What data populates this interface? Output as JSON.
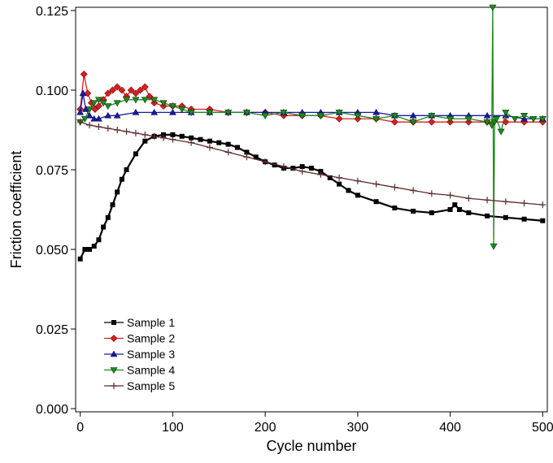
{
  "chart_data": {
    "type": "line",
    "title": "",
    "xlabel": "Cycle number",
    "ylabel": "Friction coefficient",
    "xlim": [
      -5,
      505
    ],
    "ylim": [
      -0.001,
      0.126
    ],
    "x_ticks": [
      0,
      100,
      200,
      300,
      400,
      500
    ],
    "x_tick_labels": [
      "0",
      "100",
      "200",
      "300",
      "400",
      "500"
    ],
    "y_ticks": [
      0.0,
      0.025,
      0.05,
      0.075,
      0.1,
      0.125
    ],
    "y_tick_labels": [
      "0.000",
      "0.025",
      "0.050",
      "0.075",
      "0.100",
      "0.125"
    ],
    "grid": false,
    "legend_position": "bottom-left",
    "series": [
      {
        "name": "Sample 1",
        "color": "#000000",
        "marker": "square",
        "x": [
          0,
          5,
          10,
          15,
          20,
          25,
          30,
          35,
          40,
          45,
          50,
          60,
          70,
          80,
          90,
          100,
          110,
          120,
          130,
          140,
          150,
          160,
          170,
          180,
          190,
          200,
          210,
          220,
          230,
          240,
          250,
          260,
          270,
          280,
          290,
          300,
          320,
          340,
          360,
          380,
          400,
          405,
          410,
          420,
          440,
          460,
          480,
          500
        ],
        "y": [
          0.047,
          0.05,
          0.05,
          0.051,
          0.053,
          0.057,
          0.06,
          0.064,
          0.068,
          0.072,
          0.075,
          0.08,
          0.084,
          0.0855,
          0.086,
          0.086,
          0.0855,
          0.085,
          0.0845,
          0.084,
          0.0835,
          0.083,
          0.082,
          0.0805,
          0.079,
          0.0775,
          0.0765,
          0.0755,
          0.0755,
          0.076,
          0.0755,
          0.0745,
          0.0725,
          0.0705,
          0.0685,
          0.067,
          0.065,
          0.063,
          0.062,
          0.0615,
          0.0625,
          0.064,
          0.0625,
          0.0615,
          0.0605,
          0.06,
          0.0595,
          0.059
        ]
      },
      {
        "name": "Sample 2",
        "color": "#d62020",
        "marker": "diamond",
        "x": [
          0,
          4,
          8,
          12,
          16,
          20,
          25,
          30,
          35,
          40,
          45,
          50,
          55,
          60,
          65,
          70,
          75,
          80,
          90,
          100,
          110,
          120,
          140,
          160,
          180,
          200,
          220,
          240,
          260,
          280,
          300,
          320,
          340,
          360,
          380,
          400,
          420,
          440,
          460,
          480,
          500
        ],
        "y": [
          0.094,
          0.105,
          0.099,
          0.096,
          0.094,
          0.095,
          0.097,
          0.099,
          0.1,
          0.101,
          0.1,
          0.098,
          0.1,
          0.099,
          0.1,
          0.101,
          0.098,
          0.096,
          0.095,
          0.095,
          0.095,
          0.094,
          0.094,
          0.093,
          0.093,
          0.093,
          0.092,
          0.092,
          0.092,
          0.091,
          0.091,
          0.091,
          0.09,
          0.09,
          0.09,
          0.09,
          0.09,
          0.09,
          0.09,
          0.09,
          0.09
        ]
      },
      {
        "name": "Sample 3",
        "color": "#1a1aa0",
        "marker": "triangle-up",
        "x": [
          0,
          3,
          6,
          10,
          15,
          20,
          30,
          40,
          60,
          80,
          100,
          120,
          140,
          160,
          180,
          200,
          220,
          240,
          260,
          280,
          300,
          320,
          340,
          360,
          380,
          400,
          420,
          440,
          460,
          480,
          500
        ],
        "y": [
          0.093,
          0.099,
          0.094,
          0.092,
          0.091,
          0.091,
          0.092,
          0.092,
          0.093,
          0.093,
          0.093,
          0.093,
          0.093,
          0.093,
          0.093,
          0.093,
          0.093,
          0.093,
          0.093,
          0.093,
          0.093,
          0.093,
          0.092,
          0.092,
          0.092,
          0.092,
          0.092,
          0.092,
          0.092,
          0.091,
          0.091
        ]
      },
      {
        "name": "Sample 4",
        "color": "#1e8a1e",
        "marker": "triangle-down",
        "x": [
          0,
          5,
          10,
          15,
          20,
          25,
          30,
          40,
          50,
          60,
          70,
          80,
          90,
          100,
          110,
          120,
          140,
          160,
          180,
          200,
          220,
          240,
          260,
          280,
          300,
          320,
          340,
          360,
          380,
          400,
          420,
          440,
          445,
          446,
          447,
          448,
          450,
          455,
          460,
          470,
          480,
          490,
          500
        ],
        "y": [
          0.09,
          0.091,
          0.094,
          0.096,
          0.097,
          0.096,
          0.095,
          0.096,
          0.097,
          0.097,
          0.097,
          0.097,
          0.096,
          0.095,
          0.094,
          0.093,
          0.093,
          0.093,
          0.093,
          0.092,
          0.093,
          0.092,
          0.092,
          0.093,
          0.092,
          0.091,
          0.092,
          0.09,
          0.092,
          0.091,
          0.091,
          0.09,
          0.089,
          0.126,
          0.051,
          0.09,
          0.091,
          0.087,
          0.093,
          0.091,
          0.092,
          0.091,
          0.091
        ]
      },
      {
        "name": "Sample 5",
        "color": "#5a2a2a",
        "marker": "plus",
        "x": [
          0,
          10,
          20,
          30,
          40,
          50,
          60,
          70,
          80,
          90,
          100,
          120,
          140,
          160,
          180,
          200,
          220,
          240,
          260,
          280,
          300,
          320,
          340,
          360,
          380,
          400,
          420,
          440,
          460,
          480,
          500
        ],
        "y": [
          0.09,
          0.089,
          0.0885,
          0.088,
          0.0875,
          0.087,
          0.0865,
          0.086,
          0.0855,
          0.085,
          0.0845,
          0.0835,
          0.082,
          0.0805,
          0.079,
          0.0775,
          0.076,
          0.0745,
          0.0735,
          0.0725,
          0.0715,
          0.0705,
          0.0695,
          0.0685,
          0.0675,
          0.067,
          0.066,
          0.0655,
          0.065,
          0.0645,
          0.064
        ]
      }
    ]
  }
}
